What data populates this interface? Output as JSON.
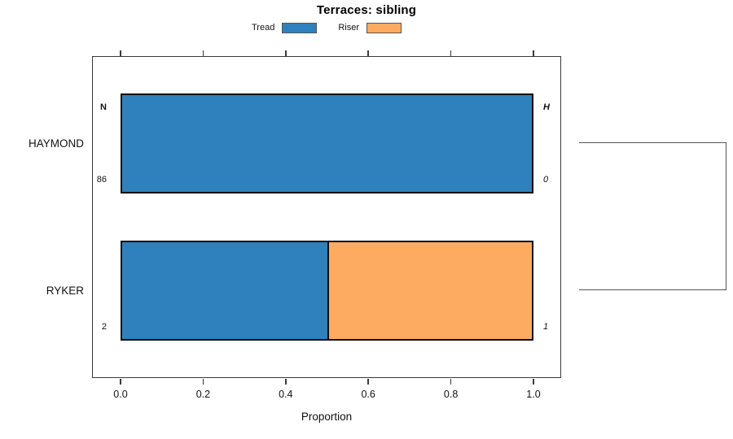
{
  "chart_data": {
    "type": "bar",
    "subtype": "horizontal_stacked_proportion",
    "title": "Terraces: sibling",
    "xlabel": "Proportion",
    "categories": [
      "HAYMOND",
      "RYKER"
    ],
    "series": [
      {
        "name": "Tread",
        "color": "#2e81bc",
        "values": [
          1.0,
          0.5
        ]
      },
      {
        "name": "Riser",
        "color": "#fcab60",
        "values": [
          0.0,
          0.5
        ]
      }
    ],
    "xlim": [
      0,
      1
    ],
    "x_ticks": [
      0.0,
      0.2,
      0.4,
      0.6,
      0.8,
      1.0
    ],
    "x_tick_labels": [
      "0.0",
      "0.2",
      "0.4",
      "0.6",
      "0.8",
      "1.0"
    ],
    "legend_position": "top-center",
    "grid": false,
    "annotations": {
      "left_header": "N",
      "left_values": [
        "86",
        "2"
      ],
      "right_header": "H",
      "right_values": [
        "0",
        "1"
      ]
    },
    "right_bracket_connects": [
      "HAYMOND",
      "RYKER"
    ]
  }
}
